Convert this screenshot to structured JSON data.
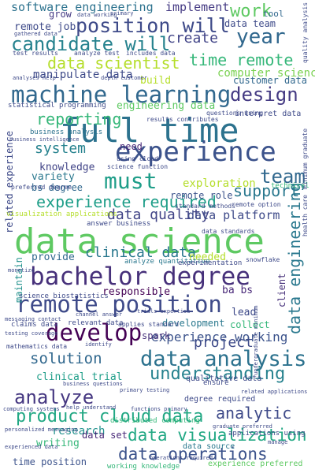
{
  "palette": {
    "background": "#ffffff",
    "dark_purple": "#46307a",
    "blue": "#3e5f8d",
    "teal": "#2a8a8a",
    "green": "#3dbb6e",
    "lime": "#9bd93c",
    "yellow": "#d8e219"
  },
  "words": [
    {
      "text": "data science",
      "color": "#5ec962"
    },
    {
      "text": "full time",
      "color": "#2c728e"
    },
    {
      "text": "experience",
      "color": "#3b528b"
    },
    {
      "text": "machine learning",
      "color": "#31688e"
    },
    {
      "text": "bachelor degree",
      "color": "#46307a"
    },
    {
      "text": "remote position",
      "color": "#3e4a89"
    },
    {
      "text": "must",
      "color": "#1f9e89"
    },
    {
      "text": "data analysis",
      "color": "#2c728e"
    },
    {
      "text": "develop",
      "color": "#440154"
    },
    {
      "text": "candidate will",
      "color": "#26828e"
    },
    {
      "text": "position will",
      "color": "#3e4a89"
    },
    {
      "text": "data scientist",
      "color": "#b5de2b"
    },
    {
      "text": "time remote",
      "color": "#35b779"
    },
    {
      "text": "design",
      "color": "#443a83"
    },
    {
      "text": "reporting",
      "color": "#35b779"
    },
    {
      "text": "team",
      "color": "#31688e"
    },
    {
      "text": "support",
      "color": "#2a788e"
    },
    {
      "text": "experience required",
      "color": "#1f9e89"
    },
    {
      "text": "year",
      "color": "#31688e"
    },
    {
      "text": "work",
      "color": "#5ec962"
    },
    {
      "text": "create",
      "color": "#414487"
    },
    {
      "text": "system",
      "color": "#26828e"
    },
    {
      "text": "analyze",
      "color": "#453781"
    },
    {
      "text": "understanding",
      "color": "#26828e"
    },
    {
      "text": "product cloud data",
      "color": "#22a884"
    },
    {
      "text": "data visualization",
      "color": "#22a884"
    },
    {
      "text": "data operations",
      "color": "#3b528b"
    },
    {
      "text": "solution",
      "color": "#31688e"
    },
    {
      "text": "project",
      "color": "#3e4a89"
    },
    {
      "text": "analytic",
      "color": "#3e4a89"
    },
    {
      "text": "data engineering",
      "color": "#2a788e"
    },
    {
      "text": "clinical data",
      "color": "#2a788e"
    },
    {
      "text": "experience working",
      "color": "#3b528b"
    },
    {
      "text": "data quality",
      "color": "#414487"
    },
    {
      "text": "data platform",
      "color": "#3e4a89"
    },
    {
      "text": "exploration",
      "color": "#b5de2b"
    },
    {
      "text": "computer science",
      "color": "#7ad151"
    },
    {
      "text": "software engineering",
      "color": "#2c728e"
    },
    {
      "text": "implement",
      "color": "#443a83"
    },
    {
      "text": "remote job",
      "color": "#3e4a89"
    },
    {
      "text": "grow",
      "color": "#443a83"
    },
    {
      "text": "data team",
      "color": "#3e4a89"
    },
    {
      "text": "manipulate data",
      "color": "#3e4a89"
    },
    {
      "text": "build",
      "color": "#b5de2b"
    },
    {
      "text": "engineering data",
      "color": "#5ec962"
    },
    {
      "text": "customer data",
      "color": "#31688e"
    },
    {
      "text": "knowledge",
      "color": "#414487"
    },
    {
      "text": "variety",
      "color": "#2a788e"
    },
    {
      "text": "bs degree",
      "color": "#31688e"
    },
    {
      "text": "remote role",
      "color": "#3b528b"
    },
    {
      "text": "need",
      "color": "#482878"
    },
    {
      "text": "provide",
      "color": "#31688e"
    },
    {
      "text": "responsible",
      "color": "#440154"
    },
    {
      "text": "needed",
      "color": "#b5de2b"
    },
    {
      "text": "ba bs",
      "color": "#482878"
    },
    {
      "text": "lead",
      "color": "#3e4a89"
    },
    {
      "text": "development",
      "color": "#2a788e"
    },
    {
      "text": "collect",
      "color": "#35b779"
    },
    {
      "text": "clinical trial",
      "color": "#1f9e89"
    },
    {
      "text": "spark",
      "color": "#46307a"
    },
    {
      "text": "research",
      "color": "#21918c"
    },
    {
      "text": "writing",
      "color": "#35b779"
    },
    {
      "text": "data set",
      "color": "#482878"
    },
    {
      "text": "time position",
      "color": "#3b528b"
    },
    {
      "text": "related experience",
      "color": "#3e4a89"
    },
    {
      "text": "maintain",
      "color": "#21918c"
    },
    {
      "text": "client",
      "color": "#46307a"
    },
    {
      "text": "tool",
      "color": "#31688e"
    },
    {
      "text": "interpret data",
      "color": "#3e4a89"
    },
    {
      "text": "qualitative data",
      "color": "#3e4a89"
    },
    {
      "text": "degree required",
      "color": "#3e4a89"
    },
    {
      "text": "data source",
      "color": "#2a788e"
    },
    {
      "text": "experience preferred",
      "color": "#5ec962"
    },
    {
      "text": "applications using",
      "color": "#3e4a89"
    },
    {
      "text": "business analysis",
      "color": "#2c728e"
    },
    {
      "text": "statistical programming",
      "color": "#3e4a89"
    },
    {
      "text": "relevant data",
      "color": "#3e4a89"
    },
    {
      "text": "claims data",
      "color": "#3e4a89"
    },
    {
      "text": "science biostatistics",
      "color": "#3e4a89"
    },
    {
      "text": "visualization applications",
      "color": "#b5de2b"
    },
    {
      "text": "answer business",
      "color": "#3e4a89"
    },
    {
      "text": "analyze quantitative",
      "color": "#2a788e"
    },
    {
      "text": "standard methods",
      "color": "#3e4a89"
    },
    {
      "text": "technical",
      "color": "#35b779"
    },
    {
      "text": "experimentation",
      "color": "#3e4a89"
    },
    {
      "text": "distributed computing",
      "color": "#35b779"
    },
    {
      "text": "working knowledge",
      "color": "#35b779"
    },
    {
      "text": "ensure",
      "color": "#3e4a89"
    },
    {
      "text": "quality analysis",
      "color": "#3e4a89"
    },
    {
      "text": "minimum graduate",
      "color": "#3e4a89"
    },
    {
      "text": "snowflake",
      "color": "#3e4a89"
    },
    {
      "text": "health care",
      "color": "#3e4a89"
    },
    {
      "text": "data standards",
      "color": "#3e4a89"
    },
    {
      "text": "remote option",
      "color": "#3e4a89"
    },
    {
      "text": "using cloud",
      "color": "#3e4a89"
    },
    {
      "text": "science function",
      "color": "#3e4a89"
    },
    {
      "text": "results contributes",
      "color": "#3e4a89"
    },
    {
      "text": "questions using",
      "color": "#3e4a89"
    },
    {
      "text": "analyze test",
      "color": "#3e4a89"
    },
    {
      "text": "includes data",
      "color": "#3e4a89"
    },
    {
      "text": "test results",
      "color": "#3e4a89"
    },
    {
      "text": "gathered data",
      "color": "#3e4a89"
    },
    {
      "text": "depth customer",
      "color": "#3e4a89"
    },
    {
      "text": "analyses help",
      "color": "#3e4a89"
    },
    {
      "text": "preferred degree",
      "color": "#3e4a89"
    },
    {
      "text": "business intelligence",
      "color": "#3e4a89"
    },
    {
      "text": "applies standard",
      "color": "#3e4a89"
    },
    {
      "text": "mathematics data",
      "color": "#3e4a89"
    },
    {
      "text": "computing systems",
      "color": "#3e4a89"
    },
    {
      "text": "personalized messaging",
      "color": "#3e4a89"
    },
    {
      "text": "help understand",
      "color": "#3e4a89"
    },
    {
      "text": "business questions",
      "color": "#3e4a89"
    },
    {
      "text": "graduate preferred",
      "color": "#3e4a89"
    },
    {
      "text": "related applications",
      "color": "#3e4a89"
    },
    {
      "text": "undergraduate minimum",
      "color": "#3e4a89"
    },
    {
      "text": "primary testing",
      "color": "#3e4a89"
    },
    {
      "text": "experienced data",
      "color": "#3e4a89"
    },
    {
      "text": "operations required",
      "color": "#3e4a89"
    },
    {
      "text": "trials expertise",
      "color": "#3e4a89"
    },
    {
      "text": "channel answer",
      "color": "#3e4a89"
    },
    {
      "text": "messaging contact",
      "color": "#3e4a89"
    },
    {
      "text": "testing coverage",
      "color": "#3e4a89"
    },
    {
      "text": "functions primary",
      "color": "#3e4a89"
    },
    {
      "text": "monetize",
      "color": "#3e4a89"
    },
    {
      "text": "identify",
      "color": "#3e4a89"
    },
    {
      "text": "data working",
      "color": "#3e4a89"
    },
    {
      "text": "primary",
      "color": "#3e4a89"
    },
    {
      "text": "manage",
      "color": "#3e4a89"
    }
  ]
}
